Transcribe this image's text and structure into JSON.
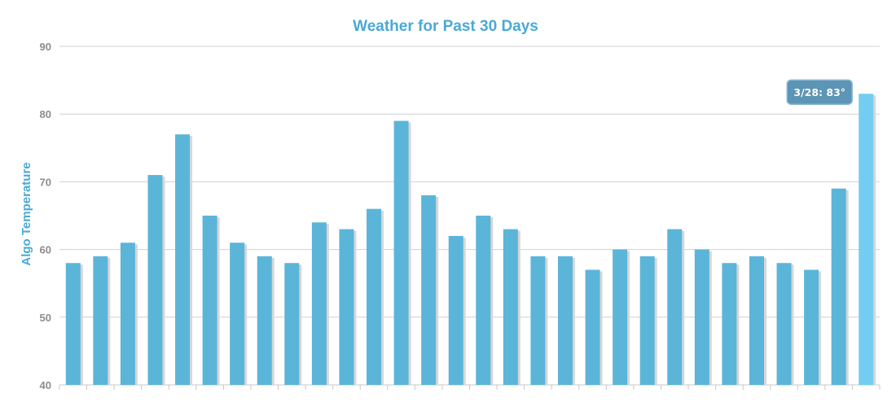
{
  "chart_data": {
    "type": "bar",
    "title": "Weather for Past 30 Days",
    "xlabel": "",
    "ylabel": "Algo Temperature",
    "ylim": [
      40,
      90
    ],
    "yticks": [
      40,
      50,
      60,
      70,
      80,
      90
    ],
    "grid": true,
    "legend": "none",
    "series": [
      {
        "values": [
          58,
          59,
          61,
          71,
          77,
          65,
          61,
          59,
          58,
          64,
          63,
          66,
          79,
          68,
          62,
          65,
          63,
          59,
          59,
          57,
          60,
          59,
          63,
          60,
          58,
          59,
          58,
          57,
          69,
          83
        ]
      }
    ],
    "highlighted_index": 29,
    "tooltip": {
      "text": "3/28: 83°"
    }
  },
  "colors": {
    "bar": "#5bb5d9",
    "bar_highlight": "#74cdf0",
    "bar_shadow": "#d7d7d7",
    "title": "#4aa9d6",
    "axis_label": "#4aa9d6",
    "grid": "#d0d0d0",
    "tooltip_bg": "#5c95b5",
    "tooltip_border": "#8fbbd3"
  }
}
